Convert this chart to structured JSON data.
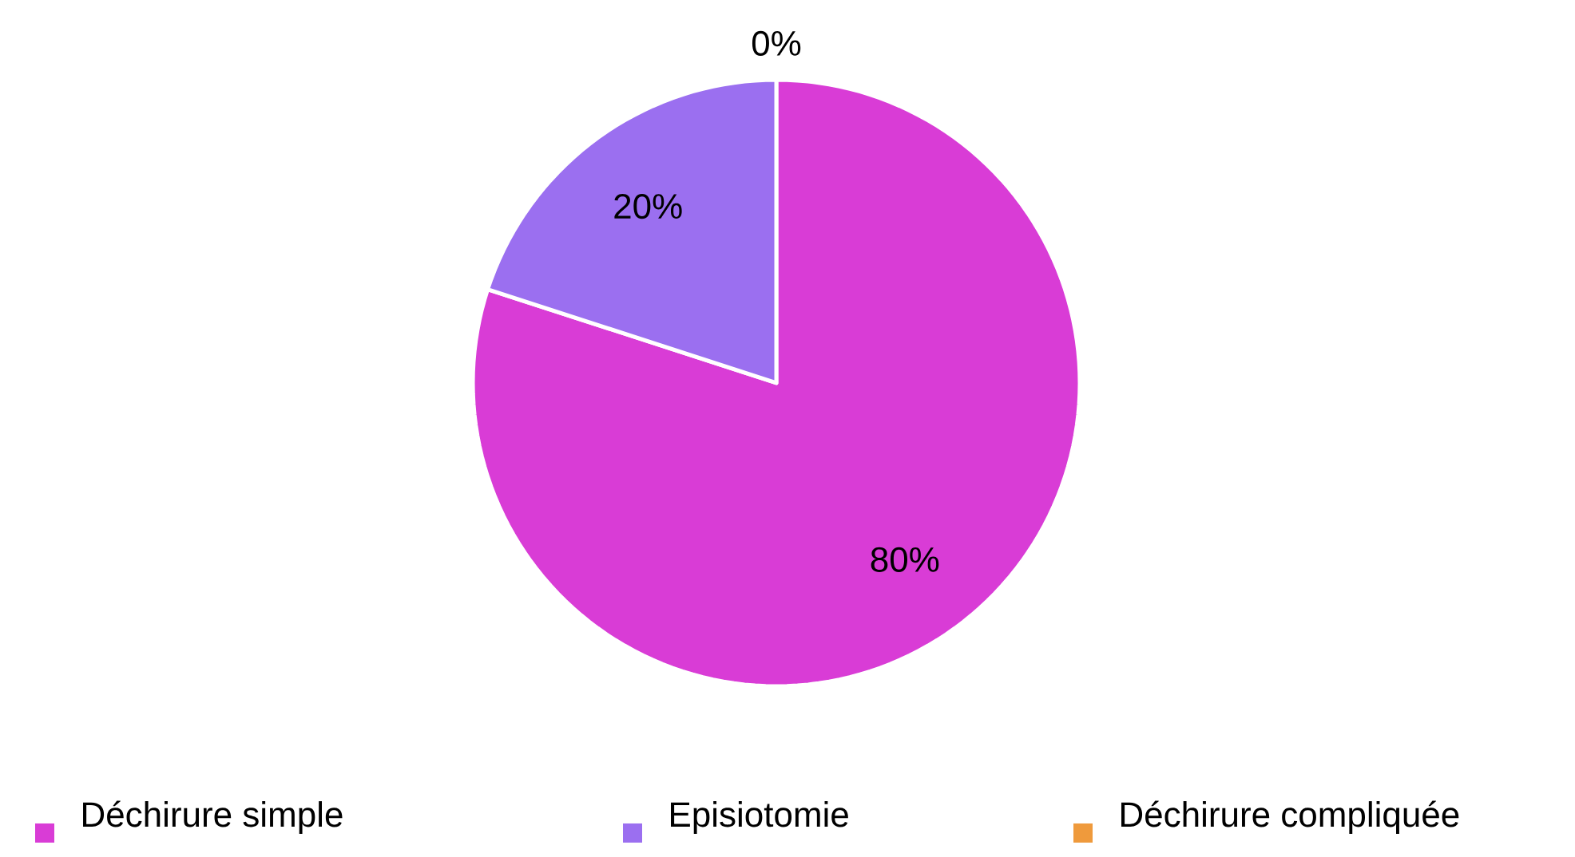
{
  "chart_data": {
    "type": "pie",
    "categories": [
      "Déchirure simple",
      "Episiotomie",
      "Déchirure compliquée"
    ],
    "values": [
      80,
      20,
      0
    ],
    "value_labels": [
      "80%",
      "20%",
      "0%"
    ],
    "colors": [
      "#d93cd6",
      "#9b6ff0",
      "#ef9a3c"
    ],
    "legend": "bottom"
  }
}
